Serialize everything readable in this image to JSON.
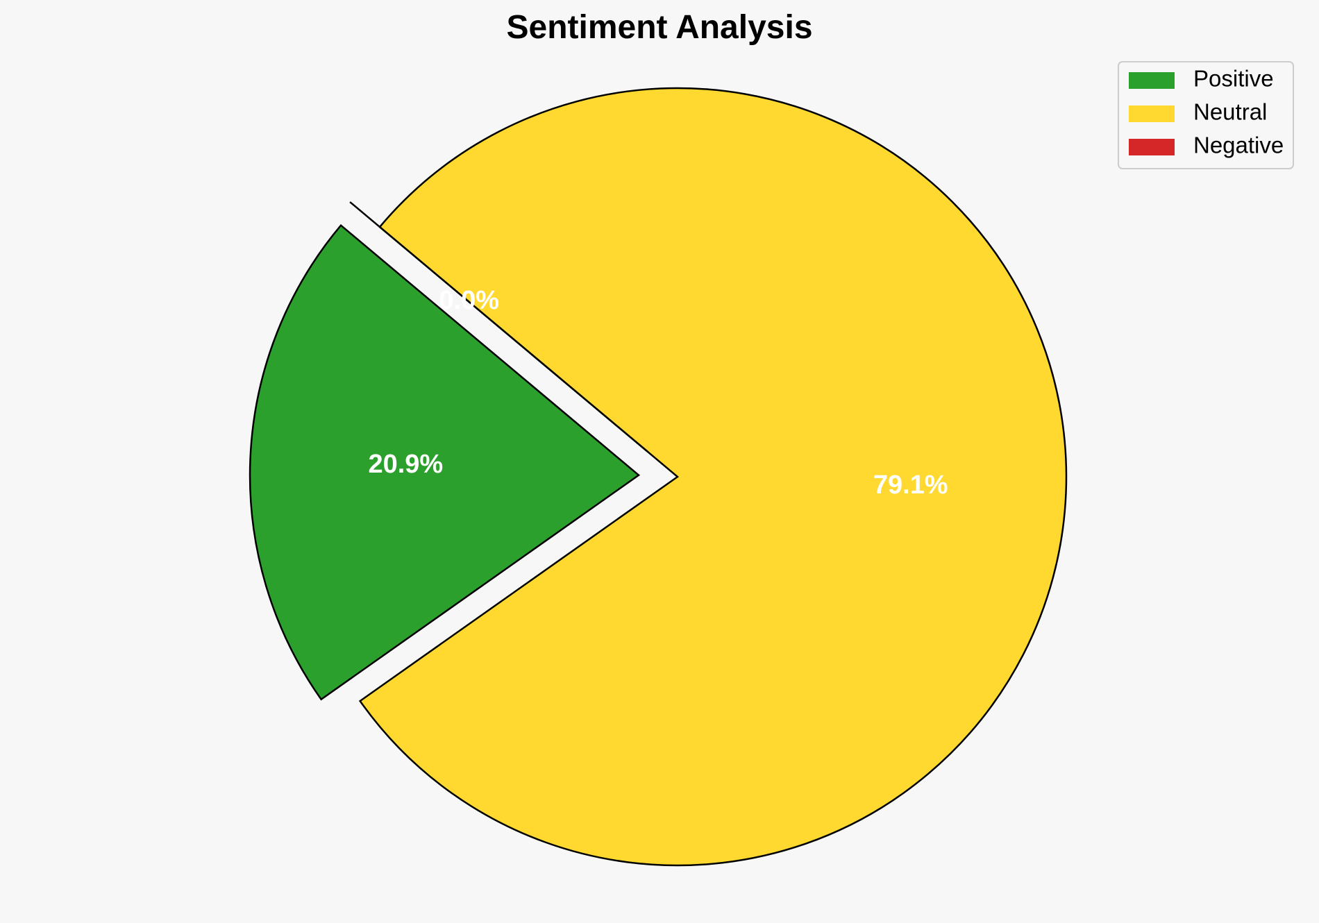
{
  "chart_data": {
    "type": "pie",
    "title": "Sentiment Analysis",
    "slices": [
      {
        "label": "Positive",
        "value": 20.9,
        "pct_label": "20.9%",
        "color": "#2ca02c",
        "exploded": true
      },
      {
        "label": "Neutral",
        "value": 79.1,
        "pct_label": "79.1%",
        "color": "#ffd92f",
        "exploded": false
      },
      {
        "label": "Negative",
        "value": 0.0,
        "pct_label": "0.0%",
        "color": "#d62728",
        "exploded": true
      }
    ],
    "legend": {
      "placement": "top-right",
      "entries": [
        "Positive",
        "Neutral",
        "Negative"
      ]
    },
    "start_angle_deg": 140,
    "direction": "counterclockwise"
  }
}
